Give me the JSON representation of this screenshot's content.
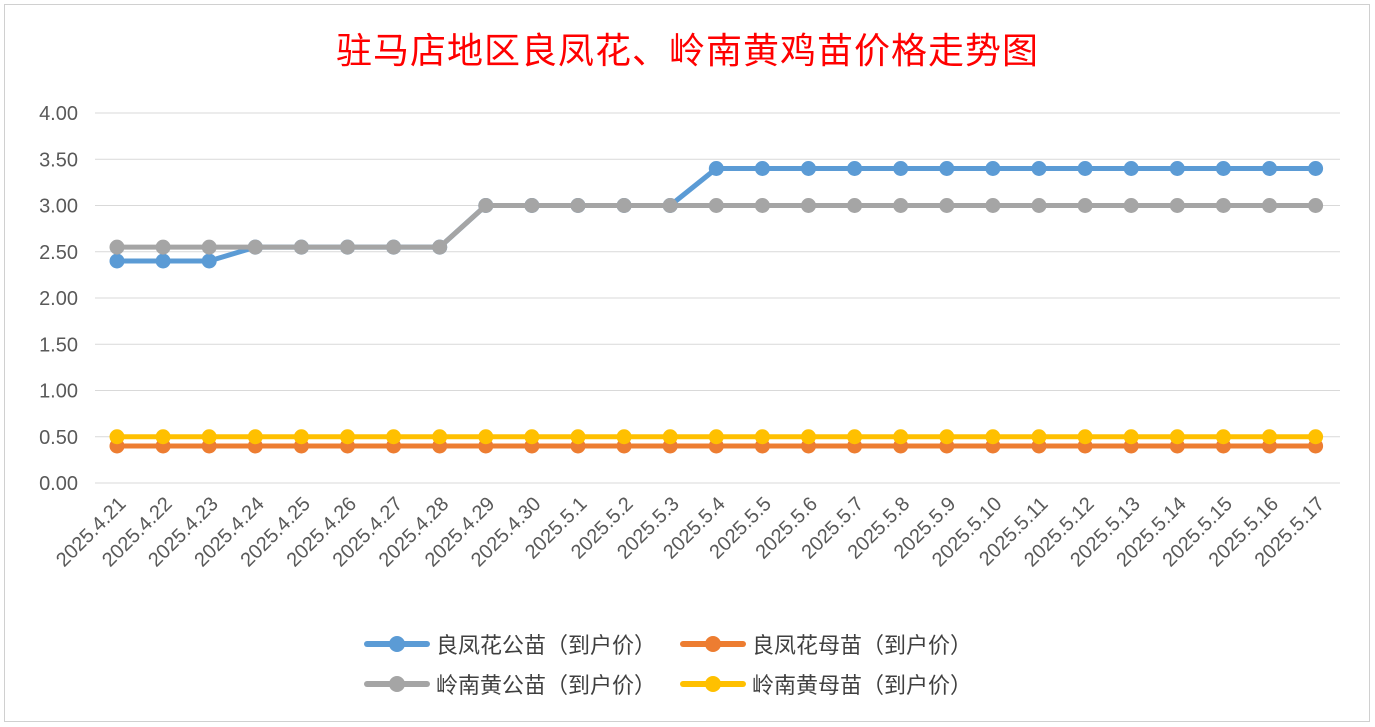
{
  "chart_data": {
    "type": "line",
    "title": "驻马店地区良凤花、岭南黄鸡苗价格走势图",
    "xlabel": "",
    "ylabel": "",
    "ylim": [
      0,
      4
    ],
    "yticks": [
      "0.00",
      "0.50",
      "1.00",
      "1.50",
      "2.00",
      "2.50",
      "3.00",
      "3.50",
      "4.00"
    ],
    "grid": true,
    "legend_position": "bottom",
    "x": [
      "2025.4.21",
      "2025.4.22",
      "2025.4.23",
      "2025.4.24",
      "2025.4.25",
      "2025.4.26",
      "2025.4.27",
      "2025.4.28",
      "2025.4.29",
      "2025.4.30",
      "2025.5.1",
      "2025.5.2",
      "2025.5.3",
      "2025.5.4",
      "2025.5.5",
      "2025.5.6",
      "2025.5.7",
      "2025.5.8",
      "2025.5.9",
      "2025.5.10",
      "2025.5.11",
      "2025.5.12",
      "2025.5.13",
      "2025.5.14",
      "2025.5.15",
      "2025.5.16",
      "2025.5.17"
    ],
    "series": [
      {
        "name": "良凤花公苗（到户价）",
        "color": "#5b9bd5",
        "values": [
          2.4,
          2.4,
          2.4,
          2.55,
          2.55,
          2.55,
          2.55,
          2.55,
          3.0,
          3.0,
          3.0,
          3.0,
          3.0,
          3.4,
          3.4,
          3.4,
          3.4,
          3.4,
          3.4,
          3.4,
          3.4,
          3.4,
          3.4,
          3.4,
          3.4,
          3.4,
          3.4
        ]
      },
      {
        "name": "良凤花母苗（到户价）",
        "color": "#ed7d31",
        "values": [
          0.4,
          0.4,
          0.4,
          0.4,
          0.4,
          0.4,
          0.4,
          0.4,
          0.4,
          0.4,
          0.4,
          0.4,
          0.4,
          0.4,
          0.4,
          0.4,
          0.4,
          0.4,
          0.4,
          0.4,
          0.4,
          0.4,
          0.4,
          0.4,
          0.4,
          0.4,
          0.4
        ]
      },
      {
        "name": "岭南黄公苗（到户价）",
        "color": "#a5a5a5",
        "values": [
          2.55,
          2.55,
          2.55,
          2.55,
          2.55,
          2.55,
          2.55,
          2.55,
          3.0,
          3.0,
          3.0,
          3.0,
          3.0,
          3.0,
          3.0,
          3.0,
          3.0,
          3.0,
          3.0,
          3.0,
          3.0,
          3.0,
          3.0,
          3.0,
          3.0,
          3.0,
          3.0
        ]
      },
      {
        "name": "岭南黄母苗（到户价）",
        "color": "#ffc000",
        "values": [
          0.5,
          0.5,
          0.5,
          0.5,
          0.5,
          0.5,
          0.5,
          0.5,
          0.5,
          0.5,
          0.5,
          0.5,
          0.5,
          0.5,
          0.5,
          0.5,
          0.5,
          0.5,
          0.5,
          0.5,
          0.5,
          0.5,
          0.5,
          0.5,
          0.5,
          0.5,
          0.5
        ]
      }
    ]
  }
}
